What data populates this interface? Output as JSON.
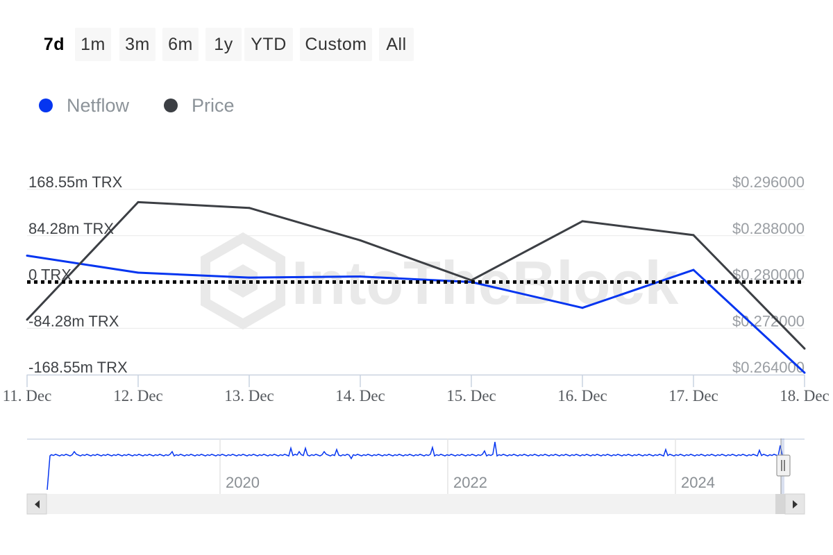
{
  "range_selector": {
    "buttons": [
      {
        "label": "7d",
        "active": true
      },
      {
        "label": "1m",
        "active": false
      },
      {
        "label": "3m",
        "active": false
      },
      {
        "label": "6m",
        "active": false
      },
      {
        "label": "1y",
        "active": false
      },
      {
        "label": "YTD",
        "active": false
      },
      {
        "label": "Custom",
        "active": false
      },
      {
        "label": "All",
        "active": false
      }
    ]
  },
  "watermark": "IntoTheBlock",
  "colors": {
    "netflow": "#0535f0",
    "price": "#3c3f44",
    "zero_line": "#000000",
    "grid": "#e9e9e9",
    "navigator_bg": "#f2f2f2"
  },
  "chart_data": {
    "type": "line",
    "categories": [
      "11. Dec",
      "12. Dec",
      "13. Dec",
      "14. Dec",
      "15. Dec",
      "16. Dec",
      "17. Dec",
      "18. Dec"
    ],
    "series": [
      {
        "name": "Netflow",
        "axis": "left",
        "values": [
          48,
          17,
          8,
          10,
          0,
          -47,
          22,
          -165
        ]
      },
      {
        "name": "Price",
        "axis": "right",
        "values": [
          0.2735,
          0.2938,
          0.2928,
          0.2872,
          0.2803,
          0.2905,
          0.2881,
          0.2685
        ]
      }
    ],
    "y_left": {
      "ticks": [
        "168.55m TRX",
        "84.28m TRX",
        "0 TRX",
        "-84.28m TRX",
        "-168.55m TRX"
      ],
      "range": [
        -168.55,
        168.55
      ],
      "unit": "m TRX"
    },
    "y_right": {
      "ticks": [
        "$0.296000",
        "$0.288000",
        "$0.280000",
        "$0.272000",
        "$0.264000"
      ],
      "range": [
        0.264,
        0.296
      ]
    },
    "zero_line": "dotted",
    "grid": true,
    "legend_position": "top-left"
  },
  "navigator": {
    "years": [
      "2020",
      "2022",
      "2024"
    ]
  }
}
